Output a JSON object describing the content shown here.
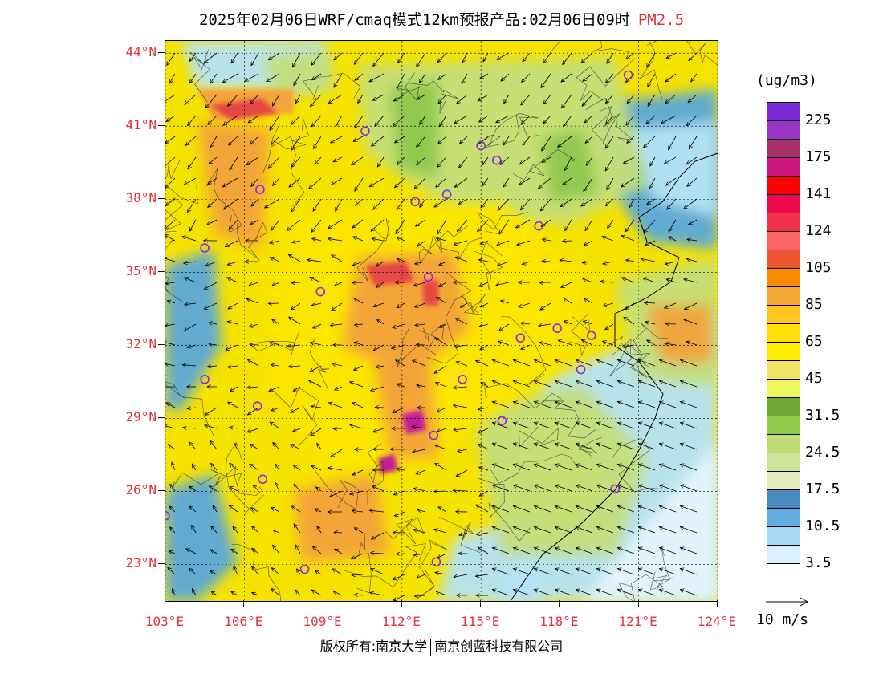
{
  "title": {
    "text": "2025年02月06日WRF/cmaq模式12km预报产品:02月06日09时",
    "pollutant": "PM2.5"
  },
  "map": {
    "lon_range": [
      103,
      124
    ],
    "lat_range": [
      21.5,
      44.5
    ],
    "lat_labels": [
      "44°N",
      "41°N",
      "38°N",
      "35°N",
      "32°N",
      "29°N",
      "26°N",
      "23°N"
    ],
    "lat_values": [
      44,
      41,
      38,
      35,
      32,
      29,
      26,
      23
    ],
    "lon_labels": [
      "103°E",
      "106°E",
      "109°E",
      "112°E",
      "115°E",
      "118°E",
      "121°E",
      "124°E"
    ],
    "lon_values": [
      103,
      106,
      109,
      112,
      115,
      118,
      121,
      124
    ],
    "colors": {
      "high_pm": "#f6e200",
      "moderate": "#f2ec55",
      "clean_green": "#8ec850",
      "clean_light_green": "#c4de7a",
      "sea_blue": "#5aa8dc",
      "sea_light": "#b5e3f7",
      "orange": "#f3a23a",
      "red": "#e54345",
      "magenta": "#c0179b",
      "station": "#8a2be2"
    },
    "stations": [
      {
        "lon": 103.0,
        "lat": 25.0
      },
      {
        "lon": 104.5,
        "lat": 36.0
      },
      {
        "lon": 104.5,
        "lat": 30.6
      },
      {
        "lon": 106.6,
        "lat": 38.4
      },
      {
        "lon": 106.5,
        "lat": 29.5
      },
      {
        "lon": 106.7,
        "lat": 26.5
      },
      {
        "lon": 108.3,
        "lat": 22.8
      },
      {
        "lon": 108.9,
        "lat": 34.2
      },
      {
        "lon": 110.6,
        "lat": 40.8
      },
      {
        "lon": 112.5,
        "lat": 37.9
      },
      {
        "lon": 113.7,
        "lat": 38.2
      },
      {
        "lon": 113.0,
        "lat": 34.8
      },
      {
        "lon": 113.2,
        "lat": 28.3
      },
      {
        "lon": 114.3,
        "lat": 30.6
      },
      {
        "lon": 113.3,
        "lat": 23.1
      },
      {
        "lon": 115.0,
        "lat": 40.2
      },
      {
        "lon": 115.6,
        "lat": 39.6
      },
      {
        "lon": 117.2,
        "lat": 36.9
      },
      {
        "lon": 115.8,
        "lat": 28.9
      },
      {
        "lon": 116.5,
        "lat": 32.3
      },
      {
        "lon": 117.9,
        "lat": 32.7
      },
      {
        "lon": 118.8,
        "lat": 31.0
      },
      {
        "lon": 119.2,
        "lat": 32.4
      },
      {
        "lon": 120.1,
        "lat": 26.1
      },
      {
        "lon": 120.6,
        "lat": 43.1
      }
    ]
  },
  "legend": {
    "unit": "(ug/m3)",
    "levels": [
      {
        "label": "225",
        "color": "#7b2bd6"
      },
      {
        "label": "",
        "color": "#9b33c8"
      },
      {
        "label": "175",
        "color": "#a8306a"
      },
      {
        "label": "",
        "color": "#c8177e"
      },
      {
        "label": "141",
        "color": "#ff0000"
      },
      {
        "label": "",
        "color": "#f00a4b"
      },
      {
        "label": "124",
        "color": "#f2304c"
      },
      {
        "label": "",
        "color": "#fa6466"
      },
      {
        "label": "105",
        "color": "#ed5530"
      },
      {
        "label": "",
        "color": "#fb8c00"
      },
      {
        "label": "85",
        "color": "#f4a937"
      },
      {
        "label": "",
        "color": "#ffc51e"
      },
      {
        "label": "65",
        "color": "#ffe000"
      },
      {
        "label": "",
        "color": "#fcee00"
      },
      {
        "label": "45",
        "color": "#f1e466"
      },
      {
        "label": "",
        "color": "#eef55e"
      },
      {
        "label": "31.5",
        "color": "#6ea836"
      },
      {
        "label": "",
        "color": "#8fca4a"
      },
      {
        "label": "24.5",
        "color": "#bedd72"
      },
      {
        "label": "",
        "color": "#cfe597"
      },
      {
        "label": "17.5",
        "color": "#dfebbf"
      },
      {
        "label": "",
        "color": "#4a8ac3"
      },
      {
        "label": "10.5",
        "color": "#63aee0"
      },
      {
        "label": "",
        "color": "#a6dbf5"
      },
      {
        "label": "3.5",
        "color": "#dbf1fb"
      },
      {
        "label": "",
        "color": "#ffffff"
      }
    ]
  },
  "wind_reference": {
    "label": "10 m/s"
  },
  "footer": {
    "copyright": "版权所有:南京大学",
    "company": "南京创蓝科技有限公司"
  }
}
